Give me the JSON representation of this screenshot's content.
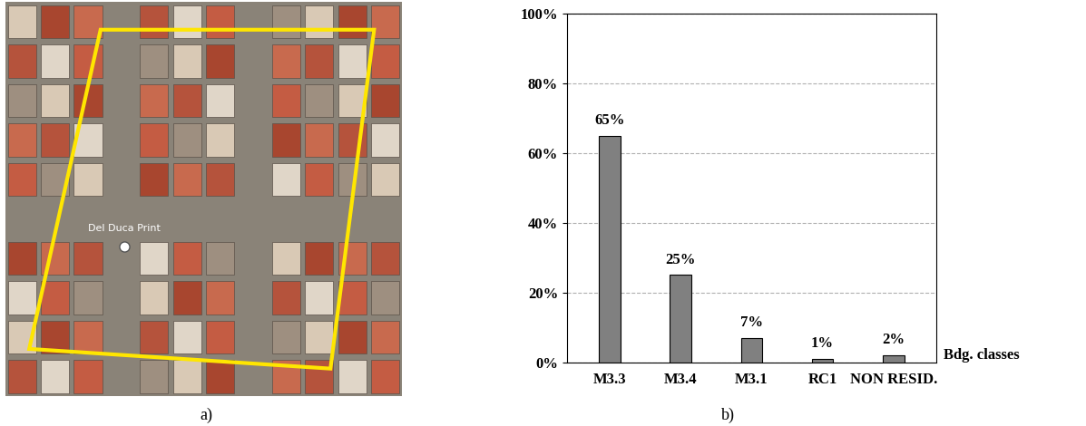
{
  "map": {
    "panel_label": "a)",
    "annotation": "Del Duca Print"
  },
  "chart_data": {
    "type": "bar",
    "panel_label": "b)",
    "x_label": "Bdg. classes",
    "categories": [
      "M3.3",
      "M3.4",
      "M3.1",
      "RC1",
      "NON RESID."
    ],
    "values": [
      65,
      25,
      7,
      1,
      2
    ],
    "value_labels": [
      "65%",
      "25%",
      "7%",
      "1%",
      "2%"
    ],
    "data_labels": true,
    "color": "#808080",
    "ylim": [
      0,
      100
    ],
    "yticks": [
      {
        "value": 0,
        "label": "0%"
      },
      {
        "value": 20,
        "label": "20%"
      },
      {
        "value": 40,
        "label": "40%"
      },
      {
        "value": 60,
        "label": "60%"
      },
      {
        "value": 80,
        "label": "80%"
      },
      {
        "value": 100,
        "label": "100%"
      }
    ],
    "grid": true
  }
}
